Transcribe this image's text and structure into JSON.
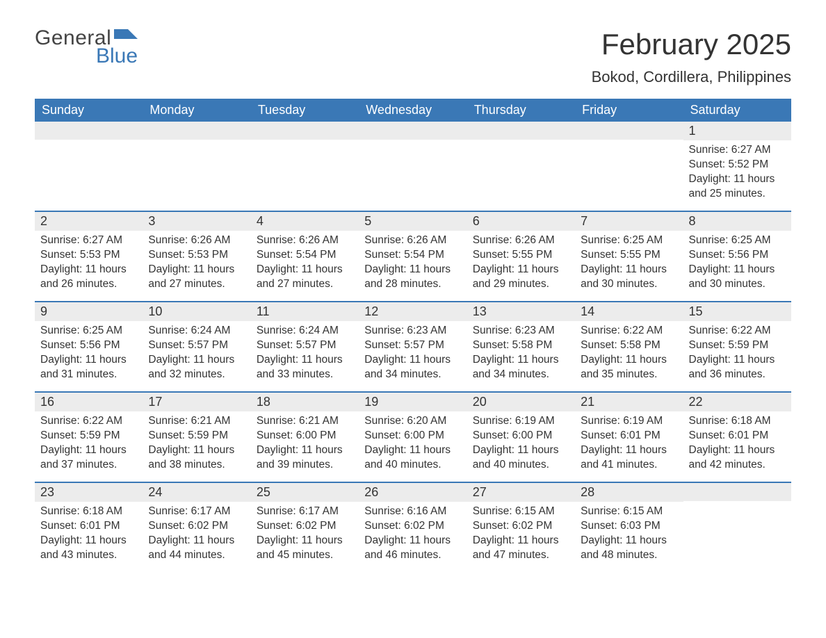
{
  "brand": {
    "word1": "General",
    "word2": "Blue",
    "flag_color": "#3a78b6"
  },
  "title": "February 2025",
  "location": "Bokod, Cordillera, Philippines",
  "colors": {
    "header_bg": "#3a78b6",
    "header_text": "#ffffff",
    "daynum_bg": "#ececec",
    "rule": "#3a78b6",
    "body_text": "#333333",
    "page_bg": "#ffffff"
  },
  "day_headers": [
    "Sunday",
    "Monday",
    "Tuesday",
    "Wednesday",
    "Thursday",
    "Friday",
    "Saturday"
  ],
  "weeks": [
    [
      {
        "blank": true
      },
      {
        "blank": true
      },
      {
        "blank": true
      },
      {
        "blank": true
      },
      {
        "blank": true
      },
      {
        "blank": true
      },
      {
        "n": "1",
        "sunrise": "Sunrise: 6:27 AM",
        "sunset": "Sunset: 5:52 PM",
        "dl1": "Daylight: 11 hours",
        "dl2": "and 25 minutes."
      }
    ],
    [
      {
        "n": "2",
        "sunrise": "Sunrise: 6:27 AM",
        "sunset": "Sunset: 5:53 PM",
        "dl1": "Daylight: 11 hours",
        "dl2": "and 26 minutes."
      },
      {
        "n": "3",
        "sunrise": "Sunrise: 6:26 AM",
        "sunset": "Sunset: 5:53 PM",
        "dl1": "Daylight: 11 hours",
        "dl2": "and 27 minutes."
      },
      {
        "n": "4",
        "sunrise": "Sunrise: 6:26 AM",
        "sunset": "Sunset: 5:54 PM",
        "dl1": "Daylight: 11 hours",
        "dl2": "and 27 minutes."
      },
      {
        "n": "5",
        "sunrise": "Sunrise: 6:26 AM",
        "sunset": "Sunset: 5:54 PM",
        "dl1": "Daylight: 11 hours",
        "dl2": "and 28 minutes."
      },
      {
        "n": "6",
        "sunrise": "Sunrise: 6:26 AM",
        "sunset": "Sunset: 5:55 PM",
        "dl1": "Daylight: 11 hours",
        "dl2": "and 29 minutes."
      },
      {
        "n": "7",
        "sunrise": "Sunrise: 6:25 AM",
        "sunset": "Sunset: 5:55 PM",
        "dl1": "Daylight: 11 hours",
        "dl2": "and 30 minutes."
      },
      {
        "n": "8",
        "sunrise": "Sunrise: 6:25 AM",
        "sunset": "Sunset: 5:56 PM",
        "dl1": "Daylight: 11 hours",
        "dl2": "and 30 minutes."
      }
    ],
    [
      {
        "n": "9",
        "sunrise": "Sunrise: 6:25 AM",
        "sunset": "Sunset: 5:56 PM",
        "dl1": "Daylight: 11 hours",
        "dl2": "and 31 minutes."
      },
      {
        "n": "10",
        "sunrise": "Sunrise: 6:24 AM",
        "sunset": "Sunset: 5:57 PM",
        "dl1": "Daylight: 11 hours",
        "dl2": "and 32 minutes."
      },
      {
        "n": "11",
        "sunrise": "Sunrise: 6:24 AM",
        "sunset": "Sunset: 5:57 PM",
        "dl1": "Daylight: 11 hours",
        "dl2": "and 33 minutes."
      },
      {
        "n": "12",
        "sunrise": "Sunrise: 6:23 AM",
        "sunset": "Sunset: 5:57 PM",
        "dl1": "Daylight: 11 hours",
        "dl2": "and 34 minutes."
      },
      {
        "n": "13",
        "sunrise": "Sunrise: 6:23 AM",
        "sunset": "Sunset: 5:58 PM",
        "dl1": "Daylight: 11 hours",
        "dl2": "and 34 minutes."
      },
      {
        "n": "14",
        "sunrise": "Sunrise: 6:22 AM",
        "sunset": "Sunset: 5:58 PM",
        "dl1": "Daylight: 11 hours",
        "dl2": "and 35 minutes."
      },
      {
        "n": "15",
        "sunrise": "Sunrise: 6:22 AM",
        "sunset": "Sunset: 5:59 PM",
        "dl1": "Daylight: 11 hours",
        "dl2": "and 36 minutes."
      }
    ],
    [
      {
        "n": "16",
        "sunrise": "Sunrise: 6:22 AM",
        "sunset": "Sunset: 5:59 PM",
        "dl1": "Daylight: 11 hours",
        "dl2": "and 37 minutes."
      },
      {
        "n": "17",
        "sunrise": "Sunrise: 6:21 AM",
        "sunset": "Sunset: 5:59 PM",
        "dl1": "Daylight: 11 hours",
        "dl2": "and 38 minutes."
      },
      {
        "n": "18",
        "sunrise": "Sunrise: 6:21 AM",
        "sunset": "Sunset: 6:00 PM",
        "dl1": "Daylight: 11 hours",
        "dl2": "and 39 minutes."
      },
      {
        "n": "19",
        "sunrise": "Sunrise: 6:20 AM",
        "sunset": "Sunset: 6:00 PM",
        "dl1": "Daylight: 11 hours",
        "dl2": "and 40 minutes."
      },
      {
        "n": "20",
        "sunrise": "Sunrise: 6:19 AM",
        "sunset": "Sunset: 6:00 PM",
        "dl1": "Daylight: 11 hours",
        "dl2": "and 40 minutes."
      },
      {
        "n": "21",
        "sunrise": "Sunrise: 6:19 AM",
        "sunset": "Sunset: 6:01 PM",
        "dl1": "Daylight: 11 hours",
        "dl2": "and 41 minutes."
      },
      {
        "n": "22",
        "sunrise": "Sunrise: 6:18 AM",
        "sunset": "Sunset: 6:01 PM",
        "dl1": "Daylight: 11 hours",
        "dl2": "and 42 minutes."
      }
    ],
    [
      {
        "n": "23",
        "sunrise": "Sunrise: 6:18 AM",
        "sunset": "Sunset: 6:01 PM",
        "dl1": "Daylight: 11 hours",
        "dl2": "and 43 minutes."
      },
      {
        "n": "24",
        "sunrise": "Sunrise: 6:17 AM",
        "sunset": "Sunset: 6:02 PM",
        "dl1": "Daylight: 11 hours",
        "dl2": "and 44 minutes."
      },
      {
        "n": "25",
        "sunrise": "Sunrise: 6:17 AM",
        "sunset": "Sunset: 6:02 PM",
        "dl1": "Daylight: 11 hours",
        "dl2": "and 45 minutes."
      },
      {
        "n": "26",
        "sunrise": "Sunrise: 6:16 AM",
        "sunset": "Sunset: 6:02 PM",
        "dl1": "Daylight: 11 hours",
        "dl2": "and 46 minutes."
      },
      {
        "n": "27",
        "sunrise": "Sunrise: 6:15 AM",
        "sunset": "Sunset: 6:02 PM",
        "dl1": "Daylight: 11 hours",
        "dl2": "and 47 minutes."
      },
      {
        "n": "28",
        "sunrise": "Sunrise: 6:15 AM",
        "sunset": "Sunset: 6:03 PM",
        "dl1": "Daylight: 11 hours",
        "dl2": "and 48 minutes."
      },
      {
        "blank": true
      }
    ]
  ]
}
